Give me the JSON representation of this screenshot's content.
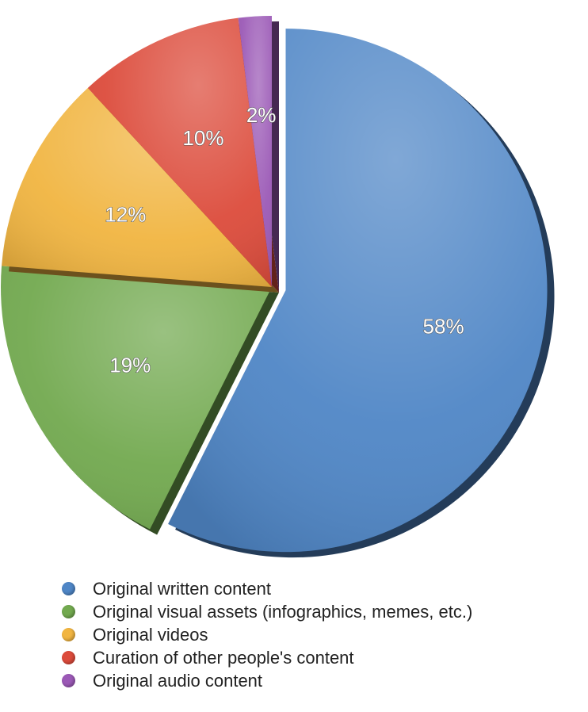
{
  "chart_data": {
    "type": "pie",
    "title": "",
    "slices": [
      {
        "label": "Original written content",
        "value": 58,
        "value_label": "58%",
        "color": "#4f86c6",
        "exploded": true
      },
      {
        "label": "Original visual assets (infographics, memes, etc.)",
        "value": 19,
        "value_label": "19%",
        "color": "#72a94f"
      },
      {
        "label": "Original videos",
        "value": 12,
        "value_label": "12%",
        "color": "#f1b541"
      },
      {
        "label": "Curation of other people's content",
        "value": 10,
        "value_label": "10%",
        "color": "#dc4b3b"
      },
      {
        "label": "Original audio content",
        "value": 2,
        "value_label": "2%",
        "color": "#9b59b6"
      }
    ],
    "start_angle": "12 o'clock",
    "direction": "clockwise",
    "legend_position": "bottom"
  }
}
